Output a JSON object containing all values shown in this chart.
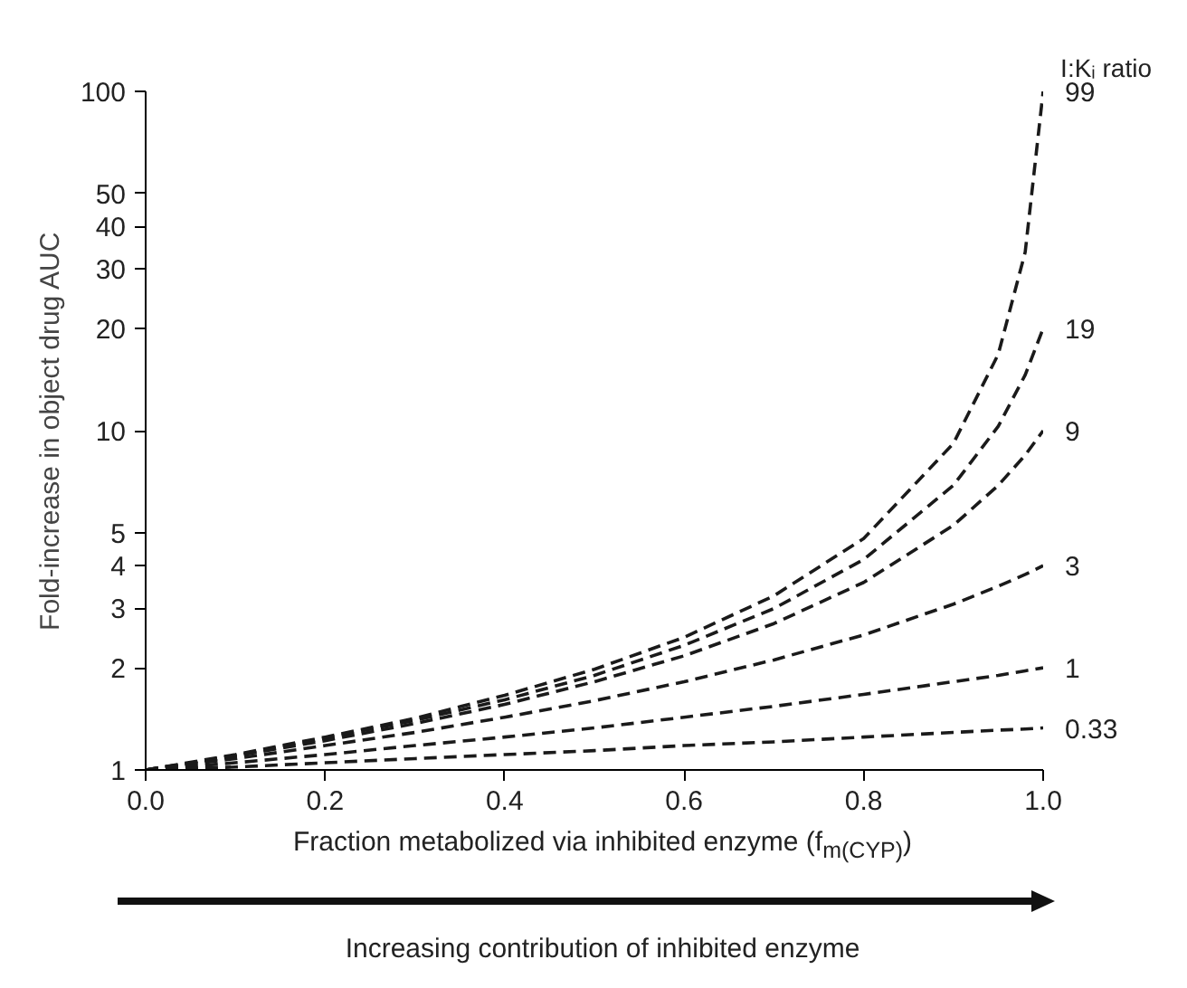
{
  "chart_data": {
    "type": "line",
    "legend_title": "I:Kᵢ ratio",
    "xlabel": "Fraction metabolized via inhibited enzyme (f$_{m(CYP)}$)",
    "ylabel": "Fold-increase in object drug AUC",
    "annotations": [
      "Increasing contribution of inhibited enzyme"
    ],
    "log": "y",
    "grid": false,
    "line_style": "dashed",
    "marker": "none",
    "x": [
      0,
      0.1,
      0.2,
      0.3,
      0.4,
      0.5,
      0.6,
      0.7,
      0.8,
      0.9,
      0.95,
      0.98,
      1.0
    ],
    "xlim": [
      0,
      1
    ],
    "xticks": [
      {
        "value": 0,
        "label": "0.0"
      },
      {
        "value": 0.2,
        "label": "0.2"
      },
      {
        "value": 0.4,
        "label": "0.4"
      },
      {
        "value": 0.6,
        "label": "0.6"
      },
      {
        "value": 0.8,
        "label": "0.8"
      },
      {
        "value": 1,
        "label": "1.0"
      }
    ],
    "ylim": [
      1,
      100
    ],
    "yticks": [
      1,
      2,
      3,
      4,
      5,
      10,
      20,
      30,
      40,
      50,
      100
    ],
    "series": [
      {
        "name": "99",
        "color": "#1a1a1a",
        "values": [
          1,
          1.11,
          1.25,
          1.42,
          1.66,
          1.98,
          2.46,
          3.26,
          4.81,
          9.17,
          16.8,
          33.6,
          100
        ]
      },
      {
        "name": "19",
        "color": "#1a1a1a",
        "values": [
          1,
          1.1,
          1.24,
          1.4,
          1.61,
          1.9,
          2.33,
          2.99,
          4.17,
          6.9,
          10.3,
          14.6,
          20
        ]
      },
      {
        "name": "9",
        "color": "#1a1a1a",
        "values": [
          1,
          1.1,
          1.22,
          1.37,
          1.56,
          1.82,
          2.17,
          2.7,
          3.57,
          5.26,
          6.9,
          8.47,
          10
        ]
      },
      {
        "name": "3",
        "color": "#1a1a1a",
        "values": [
          1,
          1.08,
          1.18,
          1.29,
          1.43,
          1.6,
          1.82,
          2.11,
          2.5,
          3.08,
          3.48,
          3.77,
          4
        ]
      },
      {
        "name": "1",
        "color": "#1a1a1a",
        "values": [
          1,
          1.05,
          1.11,
          1.18,
          1.25,
          1.33,
          1.43,
          1.54,
          1.67,
          1.82,
          1.9,
          1.96,
          2
        ]
      },
      {
        "name": "0.33",
        "color": "#1a1a1a",
        "values": [
          1,
          1.02,
          1.05,
          1.08,
          1.11,
          1.14,
          1.18,
          1.21,
          1.25,
          1.29,
          1.31,
          1.32,
          1.33
        ]
      }
    ]
  }
}
